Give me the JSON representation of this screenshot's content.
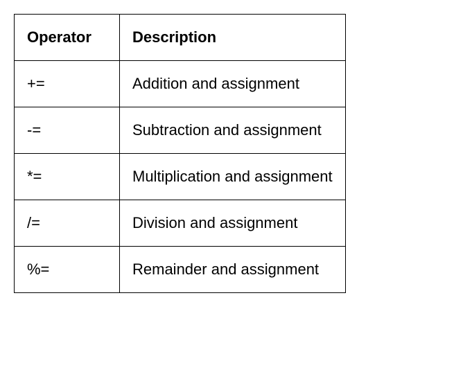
{
  "table": {
    "type": "table",
    "columns": [
      {
        "label": "Operator",
        "width": 152,
        "align": "left"
      },
      {
        "label": "Description",
        "width": "auto",
        "align": "left"
      }
    ],
    "rows": [
      {
        "operator": "+=",
        "description": "Addition and assignment"
      },
      {
        "operator": "-=",
        "description": "Subtraction and assignment"
      },
      {
        "operator": "*=",
        "description": "Multiplication and assignment"
      },
      {
        "operator": "/=",
        "description": "Division and assignment"
      },
      {
        "operator": "%=",
        "description": "Remainder and assignment"
      }
    ],
    "border_color": "#000000",
    "background_color": "#ffffff",
    "text_color": "#000000",
    "header_fontsize": 22,
    "cell_fontsize": 22,
    "header_fontweight": 600,
    "cell_fontweight": 400,
    "cell_padding": "20px 18px"
  }
}
